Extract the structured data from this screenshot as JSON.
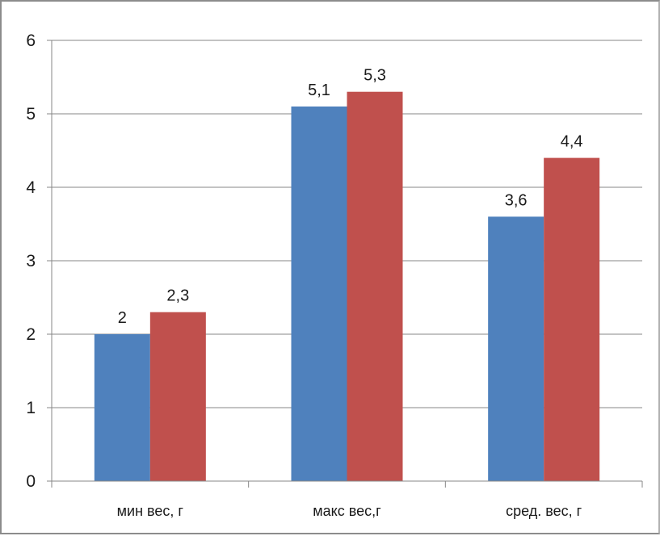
{
  "chart_data": {
    "type": "bar",
    "categories": [
      "мин вес, г",
      "макс вес,г",
      "сред. вес, г"
    ],
    "series": [
      {
        "values": [
          2,
          5.1,
          3.6
        ],
        "data_labels": [
          "2",
          "5,1",
          "3,6"
        ],
        "color": "#4f81bd"
      },
      {
        "values": [
          2.3,
          5.3,
          4.4
        ],
        "data_labels": [
          "2,3",
          "5,3",
          "4,4"
        ],
        "color": "#c0504d"
      }
    ],
    "y_ticks": [
      0,
      1,
      2,
      3,
      4,
      5,
      6
    ],
    "ylim": [
      0,
      6
    ],
    "grid": true,
    "legend": "none",
    "title": "",
    "xlabel": "",
    "ylabel": "",
    "colors": {
      "gridline": "#878787",
      "axis": "#878787"
    }
  }
}
